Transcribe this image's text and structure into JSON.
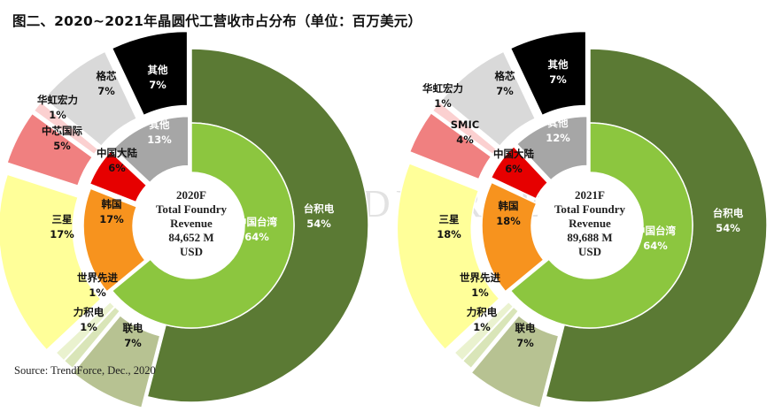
{
  "title": "图二、2020~2021年晶圆代工营收市占分布（单位：百万美元）",
  "source": "Source: TrendForce, Dec., 2020",
  "watermark": "TRENDFORCE",
  "colors": {
    "tsmc_outer": "#5b7a34",
    "taiwan_inner": "#8cc63f",
    "umc": "#b7c292",
    "psmc": "#d9e5b8",
    "vis": "#eaf2cf",
    "samsung": "#ffff99",
    "korea_inner": "#f7931e",
    "smic": "#f08080",
    "china_inner": "#e60000",
    "hua_hong": "#fbd0d0",
    "gf": "#d9d9d9",
    "others_outer": "#000000",
    "others_inner": "#a6a6a6"
  },
  "chart_data": [
    {
      "type": "pie",
      "subtype": "nested-donut",
      "center_label": [
        "2020F",
        "Total Foundry",
        "Revenue",
        "84,652 M",
        "USD"
      ],
      "inner": [
        {
          "label": "中国台湾",
          "value": 64,
          "text": "64%"
        },
        {
          "label": "韩国",
          "value": 17,
          "text": "17%"
        },
        {
          "label": "中国大陆",
          "value": 6,
          "text": "6%"
        },
        {
          "label": "其他",
          "value": 13,
          "text": "13%"
        }
      ],
      "outer": [
        {
          "label": "台积电",
          "value": 54,
          "text": "54%"
        },
        {
          "label": "联电",
          "value": 7,
          "text": "7%"
        },
        {
          "label": "力积电",
          "value": 1,
          "text": "1%"
        },
        {
          "label": "世界先进",
          "value": 1,
          "text": "1%"
        },
        {
          "label": "三星",
          "value": 17,
          "text": "17%"
        },
        {
          "label": "中芯国际",
          "value": 5,
          "text": "5%"
        },
        {
          "label": "华虹宏力",
          "value": 1,
          "text": "1%"
        },
        {
          "label": "格芯",
          "value": 7,
          "text": "7%"
        },
        {
          "label": "其他",
          "value": 7,
          "text": "7%"
        }
      ]
    },
    {
      "type": "pie",
      "subtype": "nested-donut",
      "center_label": [
        "2021F",
        "Total Foundry",
        "Revenue",
        "89,688 M",
        "USD"
      ],
      "inner": [
        {
          "label": "中国台湾",
          "value": 64,
          "text": "64%"
        },
        {
          "label": "韩国",
          "value": 18,
          "text": "18%"
        },
        {
          "label": "中国大陆",
          "value": 6,
          "text": "6%"
        },
        {
          "label": "其他",
          "value": 12,
          "text": "12%"
        }
      ],
      "outer": [
        {
          "label": "台积电",
          "value": 54,
          "text": "54%"
        },
        {
          "label": "联电",
          "value": 7,
          "text": "7%"
        },
        {
          "label": "力积电",
          "value": 1,
          "text": "1%"
        },
        {
          "label": "世界先进",
          "value": 1,
          "text": "1%"
        },
        {
          "label": "三星",
          "value": 18,
          "text": "18%"
        },
        {
          "label": "SMIC",
          "value": 4,
          "text": "4%"
        },
        {
          "label": "华虹宏力",
          "value": 1,
          "text": "1%"
        },
        {
          "label": "格芯",
          "value": 7,
          "text": "7%"
        },
        {
          "label": "其他",
          "value": 7,
          "text": "7%"
        }
      ]
    }
  ]
}
